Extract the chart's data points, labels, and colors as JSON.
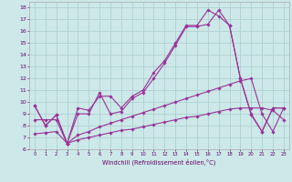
{
  "xlabel": "Windchill (Refroidissement éolien,°C)",
  "bg_color": "#cce8e8",
  "line_color": "#993399",
  "grid_color": "#aacccc",
  "xmin": -0.5,
  "xmax": 23.5,
  "ymin": 6,
  "ymax": 18.5,
  "xticks": [
    0,
    1,
    2,
    3,
    4,
    5,
    6,
    7,
    8,
    9,
    10,
    11,
    12,
    13,
    14,
    15,
    16,
    17,
    18,
    19,
    20,
    21,
    22,
    23
  ],
  "yticks": [
    6,
    7,
    8,
    9,
    10,
    11,
    12,
    13,
    14,
    15,
    16,
    17,
    18
  ],
  "curve1_x": [
    0,
    1,
    2,
    3,
    4,
    5,
    6,
    7,
    8,
    9,
    10,
    11,
    12,
    13,
    14,
    15,
    16,
    17,
    18,
    19,
    20,
    21,
    22,
    23
  ],
  "curve1_y": [
    9.7,
    8.0,
    8.9,
    6.5,
    9.0,
    9.0,
    10.8,
    9.0,
    9.2,
    10.3,
    10.8,
    12.0,
    13.3,
    14.8,
    16.4,
    16.4,
    16.6,
    17.8,
    16.5,
    12.0,
    8.9,
    7.5,
    9.5,
    9.5
  ],
  "curve2_x": [
    0,
    1,
    2,
    3,
    4,
    5,
    6,
    7,
    8,
    9,
    10,
    11,
    12,
    13,
    14,
    15,
    16,
    17,
    18,
    19,
    20,
    21,
    22,
    23
  ],
  "curve2_y": [
    9.7,
    8.0,
    8.9,
    6.5,
    9.5,
    9.3,
    10.5,
    10.5,
    9.5,
    10.5,
    11.0,
    12.5,
    13.5,
    15.0,
    16.5,
    16.5,
    17.8,
    17.3,
    16.5,
    12.0,
    9.0,
    7.5,
    9.5,
    9.5
  ],
  "diag1_x": [
    0,
    1,
    2,
    3,
    4,
    5,
    6,
    7,
    8,
    9,
    10,
    11,
    12,
    13,
    14,
    15,
    16,
    17,
    18,
    19,
    20,
    21,
    22,
    23
  ],
  "diag1_y": [
    7.3,
    7.4,
    7.5,
    6.5,
    6.8,
    7.0,
    7.2,
    7.4,
    7.6,
    7.7,
    7.9,
    8.1,
    8.3,
    8.5,
    8.7,
    8.8,
    9.0,
    9.2,
    9.4,
    9.5,
    9.5,
    9.5,
    9.3,
    8.5
  ],
  "diag2_x": [
    0,
    1,
    2,
    3,
    4,
    5,
    6,
    7,
    8,
    9,
    10,
    11,
    12,
    13,
    14,
    15,
    16,
    17,
    18,
    19,
    20,
    21,
    22,
    23
  ],
  "diag2_y": [
    8.5,
    8.5,
    8.5,
    6.5,
    7.2,
    7.5,
    7.9,
    8.2,
    8.5,
    8.8,
    9.1,
    9.4,
    9.7,
    10.0,
    10.3,
    10.6,
    10.9,
    11.2,
    11.5,
    11.8,
    12.0,
    9.0,
    7.5,
    9.5
  ]
}
